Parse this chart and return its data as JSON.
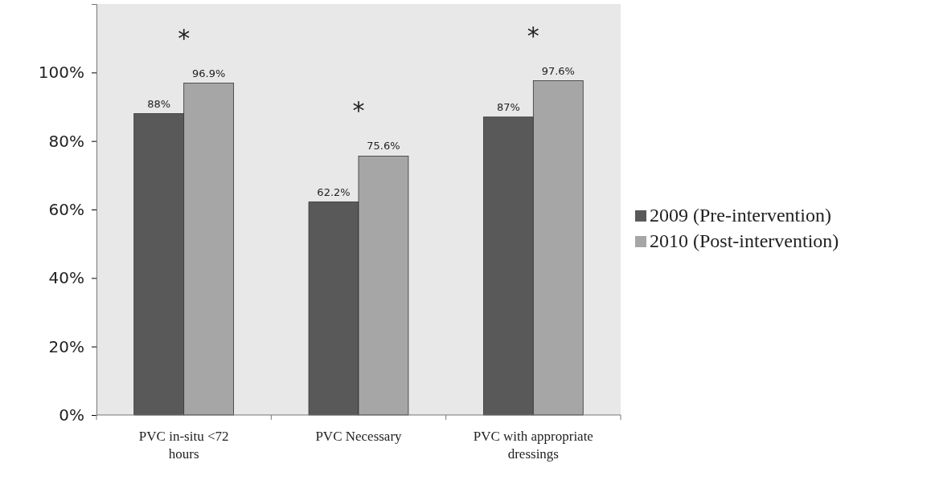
{
  "chart_data": {
    "type": "bar",
    "categories": [
      "PVC in-situ <72 hours",
      "PVC Necessary",
      "PVC with appropriate dressings"
    ],
    "series": [
      {
        "name": "2009 (Pre-intervention)",
        "color": "#595959",
        "values": [
          88,
          62.2,
          87
        ],
        "value_labels": [
          "88%",
          "62.2%",
          "87%"
        ]
      },
      {
        "name": "2010 (Post-intervention)",
        "color": "#a6a6a6",
        "values": [
          96.9,
          75.6,
          97.6
        ],
        "value_labels": [
          "96.9%",
          "75.6%",
          "97.6%"
        ]
      }
    ],
    "ylim": [
      0,
      120
    ],
    "yticks": [
      {
        "value": 0,
        "label": "0%"
      },
      {
        "value": 20,
        "label": "20%"
      },
      {
        "value": 40,
        "label": "40%"
      },
      {
        "value": 60,
        "label": "60%"
      },
      {
        "value": 80,
        "label": "80%"
      },
      {
        "value": 100,
        "label": "100%"
      }
    ],
    "annotations": [
      "*",
      "*",
      "*"
    ],
    "grid": false,
    "legend": "right"
  }
}
